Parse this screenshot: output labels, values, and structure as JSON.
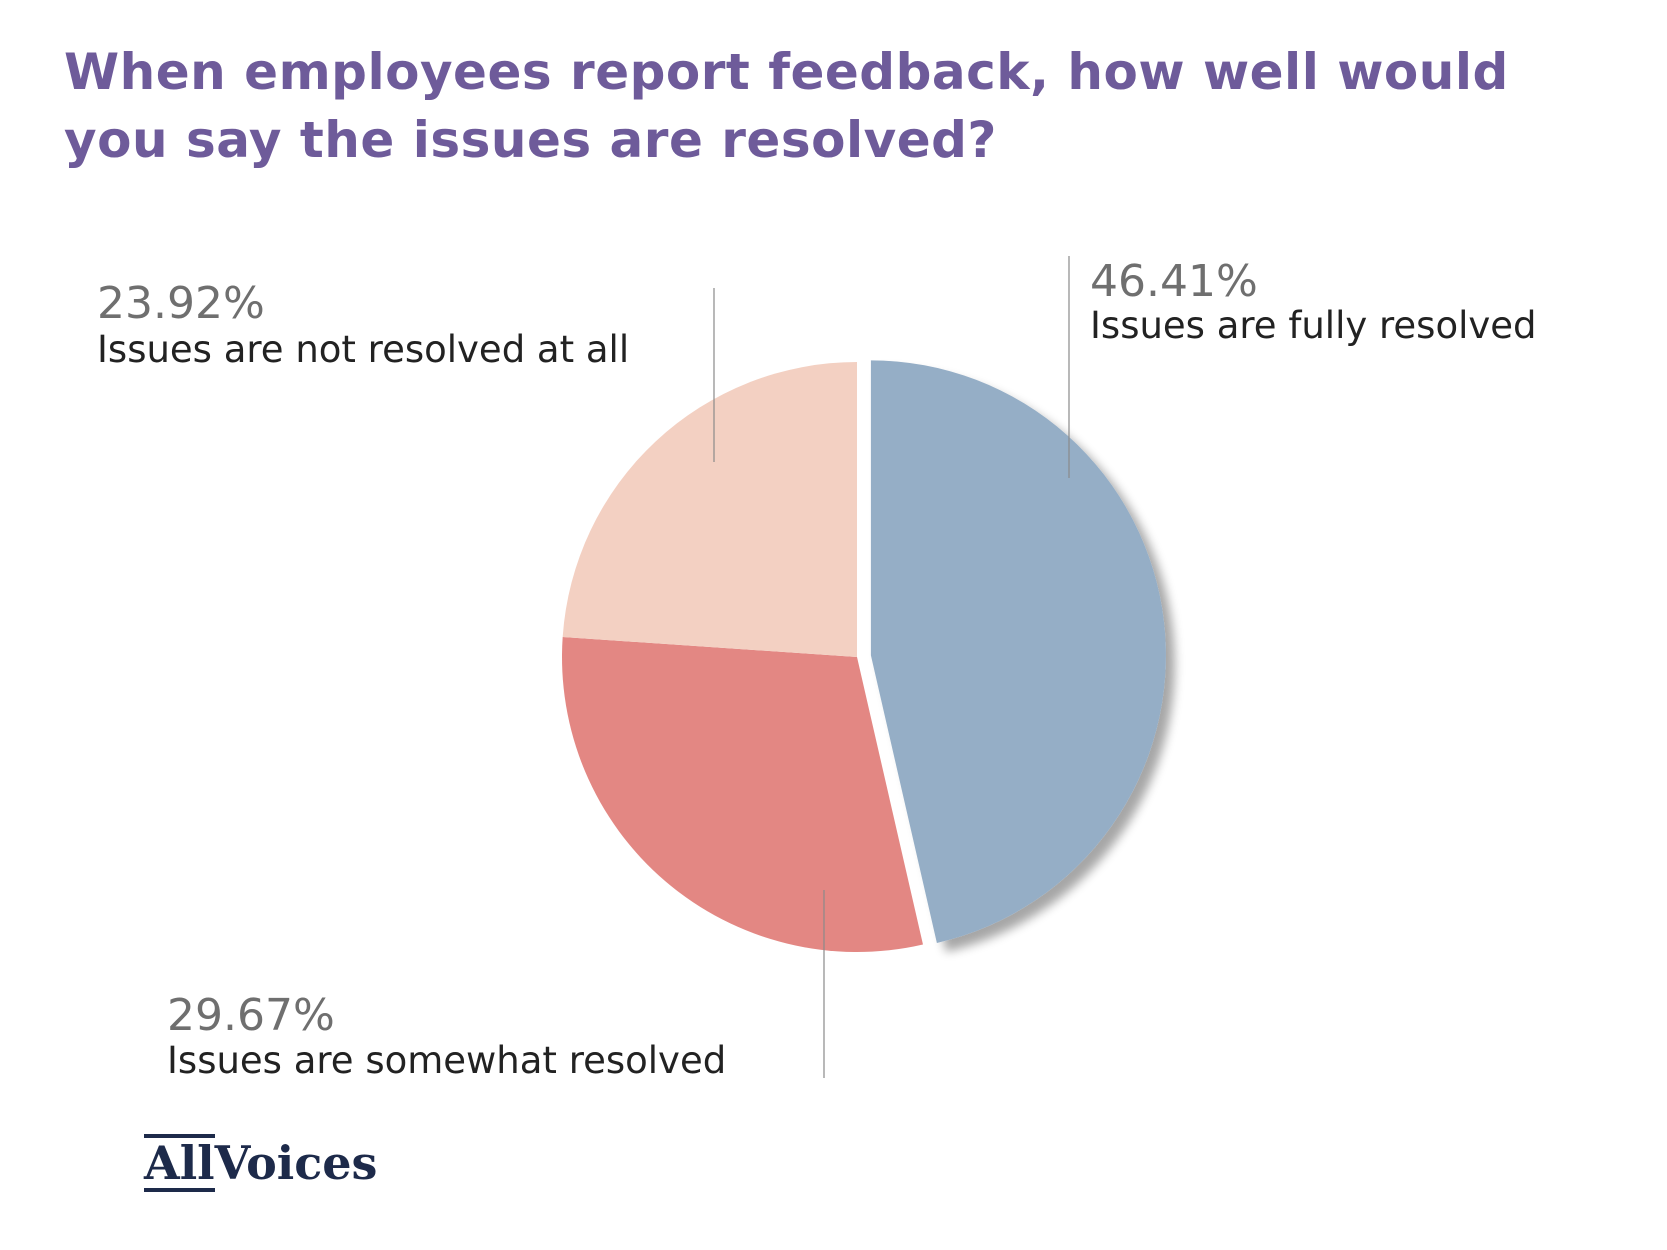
{
  "title": "When employees report feedback, how well would you say the issues are resolved?",
  "chart_data": {
    "type": "pie",
    "title": "When employees report feedback, how well would you say the issues are resolved?",
    "slices": [
      {
        "label": "Issues are fully resolved",
        "value": 46.41,
        "value_label": "46.41%",
        "color": "#95aec6",
        "exploded": true
      },
      {
        "label": "Issues are somewhat resolved",
        "value": 29.67,
        "value_label": "29.67%",
        "color": "#e38783"
      },
      {
        "label": "Issues are not resolved at all",
        "value": 23.92,
        "value_label": "23.92%",
        "color": "#f3d0c2"
      }
    ],
    "start_angle_deg": 0,
    "direction": "clockwise",
    "legend": "none"
  },
  "logo": {
    "part1": "All",
    "part2": "Voices"
  }
}
